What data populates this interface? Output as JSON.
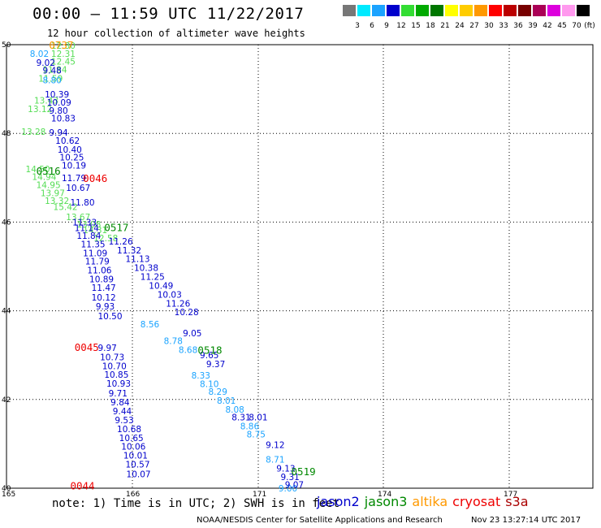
{
  "header": {
    "title": "00:00 – 11:59 UTC 11/22/2017",
    "subtitle": "12 hour collection of altimeter wave heights"
  },
  "colorbar": {
    "units": "(ft)",
    "colors": [
      "#777777",
      "#00eaff",
      "#1aa3ff",
      "#0000cc",
      "#33dd33",
      "#00aa00",
      "#007700",
      "#ffff00",
      "#ffcc00",
      "#ff9900",
      "#ff0000",
      "#bb0000",
      "#770000",
      "#aa0055",
      "#dd00dd",
      "#ff99ee",
      "#000000"
    ],
    "labels": [
      "3",
      "6",
      "9",
      "12",
      "15",
      "18",
      "21",
      "24",
      "27",
      "30",
      "33",
      "36",
      "39",
      "42",
      "45",
      "70"
    ]
  },
  "colors": {
    "jason2": "#0000cc",
    "jason3": "#008800",
    "altika": "#ff9900",
    "cryosat": "#ee0000",
    "s3a": "#aa0000",
    "light_blue": "#1aa3ff",
    "light_green": "#55dd55"
  },
  "map": {
    "y_labels": [
      "50",
      "48",
      "46",
      "44",
      "42",
      "40"
    ],
    "x_labels": [
      "165",
      "166",
      "171",
      "174",
      "177"
    ]
  },
  "time_labels": [
    {
      "text": "0737",
      "sat": "altika",
      "x": 165.9,
      "y": 49.98
    },
    {
      "text": "0516",
      "sat": "jason3",
      "x": 165.6,
      "y": 47.14
    },
    {
      "text": "0046",
      "sat": "cryosat",
      "x": 166.7,
      "y": 46.98
    },
    {
      "text": "0517",
      "sat": "jason3",
      "x": 167.2,
      "y": 45.87
    },
    {
      "text": "0045",
      "sat": "cryosat",
      "x": 166.5,
      "y": 43.17
    },
    {
      "text": "0518",
      "sat": "jason3",
      "x": 169.4,
      "y": 43.1
    },
    {
      "text": "0519",
      "sat": "jason3",
      "x": 171.6,
      "y": 40.37
    },
    {
      "text": "0044",
      "sat": "cryosat",
      "x": 166.4,
      "y": 40.05
    }
  ],
  "tracks": [
    {
      "sat": "jason3_light",
      "points": [
        {
          "x": 165.95,
          "y": 49.98,
          "v": "12.30"
        },
        {
          "x": 165.95,
          "y": 49.8,
          "v": "12.31"
        },
        {
          "x": 165.95,
          "y": 49.62,
          "v": "12.45"
        },
        {
          "x": 165.75,
          "y": 49.44,
          "v": "11.84"
        },
        {
          "x": 165.65,
          "y": 49.24,
          "v": "11.59"
        },
        {
          "x": 165.55,
          "y": 48.75,
          "v": "13.43"
        },
        {
          "x": 165.4,
          "y": 48.55,
          "v": "13.12"
        },
        {
          "x": 165.25,
          "y": 48.04,
          "v": "13.28"
        },
        {
          "x": 165.35,
          "y": 47.2,
          "v": "14.50"
        },
        {
          "x": 165.5,
          "y": 47.02,
          "v": "14.94"
        },
        {
          "x": 165.6,
          "y": 46.84,
          "v": "14.95"
        },
        {
          "x": 165.7,
          "y": 46.66,
          "v": "13.97"
        },
        {
          "x": 165.8,
          "y": 46.48,
          "v": "13.32"
        },
        {
          "x": 166.0,
          "y": 46.35,
          "v": "15.42"
        },
        {
          "x": 166.3,
          "y": 46.12,
          "v": "13.67"
        },
        {
          "x": 166.55,
          "y": 45.95,
          "v": "13.08"
        },
        {
          "x": 166.7,
          "y": 45.82,
          "v": "14.31"
        },
        {
          "x": 166.95,
          "y": 45.64,
          "v": "12.58"
        }
      ]
    },
    {
      "sat": "jason2_light",
      "points": [
        {
          "x": 165.45,
          "y": 49.8,
          "v": "8.02"
        },
        {
          "x": 165.75,
          "y": 49.2,
          "v": "8.80"
        },
        {
          "x": 168.05,
          "y": 43.7,
          "v": "8.56"
        },
        {
          "x": 168.6,
          "y": 43.32,
          "v": "8.78"
        },
        {
          "x": 168.95,
          "y": 43.12,
          "v": "8.68"
        },
        {
          "x": 169.25,
          "y": 42.55,
          "v": "8.33"
        },
        {
          "x": 169.45,
          "y": 42.35,
          "v": "8.10"
        },
        {
          "x": 169.65,
          "y": 42.18,
          "v": "8.29"
        },
        {
          "x": 169.85,
          "y": 41.98,
          "v": "8.01"
        },
        {
          "x": 170.05,
          "y": 41.78,
          "v": "8.08"
        },
        {
          "x": 170.4,
          "y": 41.4,
          "v": "8.86"
        },
        {
          "x": 170.55,
          "y": 41.22,
          "v": "8.75"
        },
        {
          "x": 171.0,
          "y": 40.65,
          "v": "8.71"
        },
        {
          "x": 171.3,
          "y": 40.0,
          "v": "9.00"
        }
      ]
    },
    {
      "sat": "jason2",
      "points": [
        {
          "x": 165.6,
          "y": 49.6,
          "v": "9.02"
        },
        {
          "x": 165.75,
          "y": 49.42,
          "v": "9.48"
        },
        {
          "x": 165.8,
          "y": 48.88,
          "v": "10.39"
        },
        {
          "x": 165.85,
          "y": 48.7,
          "v": "10.09"
        },
        {
          "x": 165.9,
          "y": 48.52,
          "v": "9.80"
        },
        {
          "x": 165.95,
          "y": 48.34,
          "v": "10.83"
        },
        {
          "x": 165.9,
          "y": 48.02,
          "v": "9.94"
        },
        {
          "x": 166.05,
          "y": 47.84,
          "v": "10.62"
        },
        {
          "x": 166.1,
          "y": 47.64,
          "v": "10.40"
        },
        {
          "x": 166.15,
          "y": 47.46,
          "v": "10.25"
        },
        {
          "x": 166.2,
          "y": 47.28,
          "v": "10.19"
        },
        {
          "x": 166.2,
          "y": 47.0,
          "v": "11.79"
        },
        {
          "x": 166.3,
          "y": 46.78,
          "v": "10.67"
        },
        {
          "x": 166.4,
          "y": 46.45,
          "v": "11.80"
        },
        {
          "x": 166.45,
          "y": 46.0,
          "v": "11.33"
        },
        {
          "x": 166.5,
          "y": 45.87,
          "v": "11.14"
        },
        {
          "x": 166.55,
          "y": 45.7,
          "v": "11.84"
        },
        {
          "x": 166.65,
          "y": 45.5,
          "v": "11.35"
        },
        {
          "x": 166.7,
          "y": 45.3,
          "v": "11.09"
        },
        {
          "x": 166.75,
          "y": 45.12,
          "v": "11.79"
        },
        {
          "x": 166.8,
          "y": 44.92,
          "v": "11.06"
        },
        {
          "x": 166.85,
          "y": 44.72,
          "v": "10.89"
        },
        {
          "x": 166.9,
          "y": 44.52,
          "v": "11.47"
        },
        {
          "x": 166.9,
          "y": 44.3,
          "v": "10.12"
        },
        {
          "x": 167.0,
          "y": 44.1,
          "v": "9.93"
        },
        {
          "x": 167.05,
          "y": 43.88,
          "v": "10.50"
        },
        {
          "x": 167.05,
          "y": 43.17,
          "v": "9.97"
        },
        {
          "x": 167.1,
          "y": 42.96,
          "v": "10.73"
        },
        {
          "x": 167.15,
          "y": 42.76,
          "v": "10.70"
        },
        {
          "x": 167.2,
          "y": 42.56,
          "v": "10.85"
        },
        {
          "x": 167.25,
          "y": 42.36,
          "v": "10.93"
        },
        {
          "x": 167.3,
          "y": 42.14,
          "v": "9.71"
        },
        {
          "x": 167.35,
          "y": 41.94,
          "v": "9.84"
        },
        {
          "x": 167.4,
          "y": 41.74,
          "v": "9.44"
        },
        {
          "x": 167.45,
          "y": 41.54,
          "v": "9.53"
        },
        {
          "x": 167.5,
          "y": 41.34,
          "v": "10.68"
        },
        {
          "x": 167.55,
          "y": 41.14,
          "v": "10.65"
        },
        {
          "x": 167.6,
          "y": 40.94,
          "v": "10.06"
        },
        {
          "x": 167.65,
          "y": 40.74,
          "v": "10.01"
        },
        {
          "x": 167.7,
          "y": 40.54,
          "v": "10.57"
        },
        {
          "x": 167.72,
          "y": 40.32,
          "v": "10.07"
        },
        {
          "x": 167.3,
          "y": 45.57,
          "v": "11.26"
        },
        {
          "x": 167.5,
          "y": 45.37,
          "v": "11.32"
        },
        {
          "x": 167.7,
          "y": 45.17,
          "v": "11.13"
        },
        {
          "x": 167.9,
          "y": 44.97,
          "v": "10.38"
        },
        {
          "x": 168.05,
          "y": 44.77,
          "v": "11.25"
        },
        {
          "x": 168.25,
          "y": 44.57,
          "v": "10.49"
        },
        {
          "x": 168.45,
          "y": 44.37,
          "v": "10.03"
        },
        {
          "x": 168.65,
          "y": 44.17,
          "v": "11.26"
        },
        {
          "x": 168.85,
          "y": 43.97,
          "v": "10.28"
        },
        {
          "x": 169.05,
          "y": 43.5,
          "v": "9.05"
        },
        {
          "x": 169.45,
          "y": 43.0,
          "v": "9.65"
        },
        {
          "x": 169.6,
          "y": 42.8,
          "v": "9.37"
        },
        {
          "x": 170.2,
          "y": 41.6,
          "v": "8.31"
        },
        {
          "x": 170.6,
          "y": 41.6,
          "v": "8.01"
        },
        {
          "x": 171.0,
          "y": 40.98,
          "v": "9.12"
        },
        {
          "x": 171.25,
          "y": 40.45,
          "v": "9.13"
        },
        {
          "x": 171.35,
          "y": 40.26,
          "v": "9.31"
        },
        {
          "x": 171.45,
          "y": 40.08,
          "v": "9.07"
        }
      ]
    }
  ],
  "footer": {
    "note": "note: 1) Time is in UTC; 2) SWH is in feet",
    "satellites": [
      {
        "name": "jason2",
        "key": "jason2"
      },
      {
        "name": "jason3",
        "key": "jason3"
      },
      {
        "name": "altika",
        "key": "altika"
      },
      {
        "name": "cryosat",
        "key": "cryosat"
      },
      {
        "name": "s3a",
        "key": "s3a"
      }
    ],
    "credit": "NOAA/NESDIS Center for Satellite Applications and Research",
    "timestamp": "Nov 23 13:27:14 UTC 2017"
  }
}
